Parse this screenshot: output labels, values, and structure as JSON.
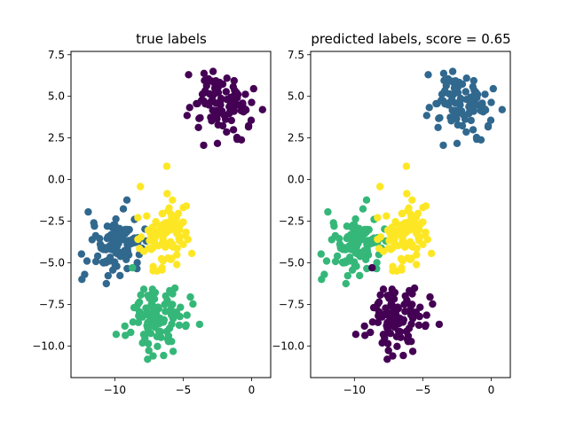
{
  "colors": {
    "purple": "#440154",
    "blue": "#31688e",
    "green": "#35b779",
    "yellow": "#fde725"
  },
  "chart_data": [
    {
      "type": "scatter",
      "title": "true labels",
      "xlim": [
        -13.2,
        1.4
      ],
      "ylim": [
        -11.9,
        7.7
      ],
      "xticks": [
        -10,
        -5,
        0
      ],
      "xtick_labels": [
        "−10",
        "−5",
        "0"
      ],
      "yticks": [
        -10.0,
        -7.5,
        -5.0,
        -2.5,
        0.0,
        2.5,
        5.0,
        7.5
      ],
      "ytick_labels": [
        "−10.0",
        "−7.5",
        "−5.0",
        "−2.5",
        "0.0",
        "2.5",
        "5.0",
        "7.5"
      ],
      "grid": false,
      "clusters": [
        {
          "color_key": "purple",
          "center": [
            -2.1,
            4.5
          ],
          "spread": [
            1.05,
            0.95
          ],
          "n": 100
        },
        {
          "color_key": "blue",
          "center": [
            -10.0,
            -3.9
          ],
          "spread": [
            1.05,
            0.95
          ],
          "n": 100
        },
        {
          "color_key": "yellow",
          "center": [
            -6.1,
            -3.3
          ],
          "spread": [
            0.95,
            1.0
          ],
          "n": 100
        },
        {
          "color_key": "green",
          "center": [
            -7.0,
            -8.2
          ],
          "spread": [
            1.0,
            0.9
          ],
          "n": 100
        }
      ],
      "extra_points": [
        {
          "x": -4.6,
          "y": 6.3,
          "color_key": "purple"
        },
        {
          "x": 0.8,
          "y": 4.2,
          "color_key": "purple"
        },
        {
          "x": -12.4,
          "y": -6.0,
          "color_key": "blue"
        },
        {
          "x": -12.2,
          "y": -5.7,
          "color_key": "blue"
        },
        {
          "x": -3.8,
          "y": -8.7,
          "color_key": "green"
        },
        {
          "x": -9.9,
          "y": -9.3,
          "color_key": "green"
        },
        {
          "x": -7.6,
          "y": -10.8,
          "color_key": "green"
        },
        {
          "x": -7.2,
          "y": -10.6,
          "color_key": "green"
        },
        {
          "x": -6.2,
          "y": 0.8,
          "color_key": "yellow"
        },
        {
          "x": -8.7,
          "y": -5.3,
          "color_key": "green"
        }
      ]
    },
    {
      "type": "scatter",
      "title": "predicted labels, score = 0.65",
      "xlim": [
        -13.2,
        1.4
      ],
      "ylim": [
        -11.9,
        7.7
      ],
      "xticks": [
        -10,
        -5,
        0
      ],
      "xtick_labels": [
        "−10",
        "−5",
        "0"
      ],
      "yticks": [
        -10.0,
        -7.5,
        -5.0,
        -2.5,
        0.0,
        2.5,
        5.0,
        7.5
      ],
      "ytick_labels": [
        "−10.0",
        "−7.5",
        "−5.0",
        "−2.5",
        "0.0",
        "2.5",
        "5.0",
        "7.5"
      ],
      "grid": false,
      "clusters": [
        {
          "color_key": "blue",
          "center": [
            -2.1,
            4.5
          ],
          "spread": [
            1.05,
            0.95
          ],
          "n": 100
        },
        {
          "color_key": "green",
          "center": [
            -10.0,
            -3.9
          ],
          "spread": [
            1.05,
            0.95
          ],
          "n": 100
        },
        {
          "color_key": "yellow",
          "center": [
            -6.1,
            -3.3
          ],
          "spread": [
            0.95,
            1.0
          ],
          "n": 100
        },
        {
          "color_key": "purple",
          "center": [
            -7.0,
            -8.2
          ],
          "spread": [
            1.0,
            0.9
          ],
          "n": 100
        }
      ],
      "extra_points": [
        {
          "x": -4.6,
          "y": 6.3,
          "color_key": "blue"
        },
        {
          "x": 0.8,
          "y": 4.2,
          "color_key": "blue"
        },
        {
          "x": -12.4,
          "y": -6.0,
          "color_key": "green"
        },
        {
          "x": -12.2,
          "y": -5.7,
          "color_key": "green"
        },
        {
          "x": -3.8,
          "y": -8.7,
          "color_key": "purple"
        },
        {
          "x": -9.9,
          "y": -9.3,
          "color_key": "purple"
        },
        {
          "x": -7.6,
          "y": -10.8,
          "color_key": "purple"
        },
        {
          "x": -7.2,
          "y": -10.6,
          "color_key": "purple"
        },
        {
          "x": -6.2,
          "y": 0.8,
          "color_key": "yellow"
        },
        {
          "x": -8.7,
          "y": -5.3,
          "color_key": "purple"
        }
      ]
    }
  ]
}
